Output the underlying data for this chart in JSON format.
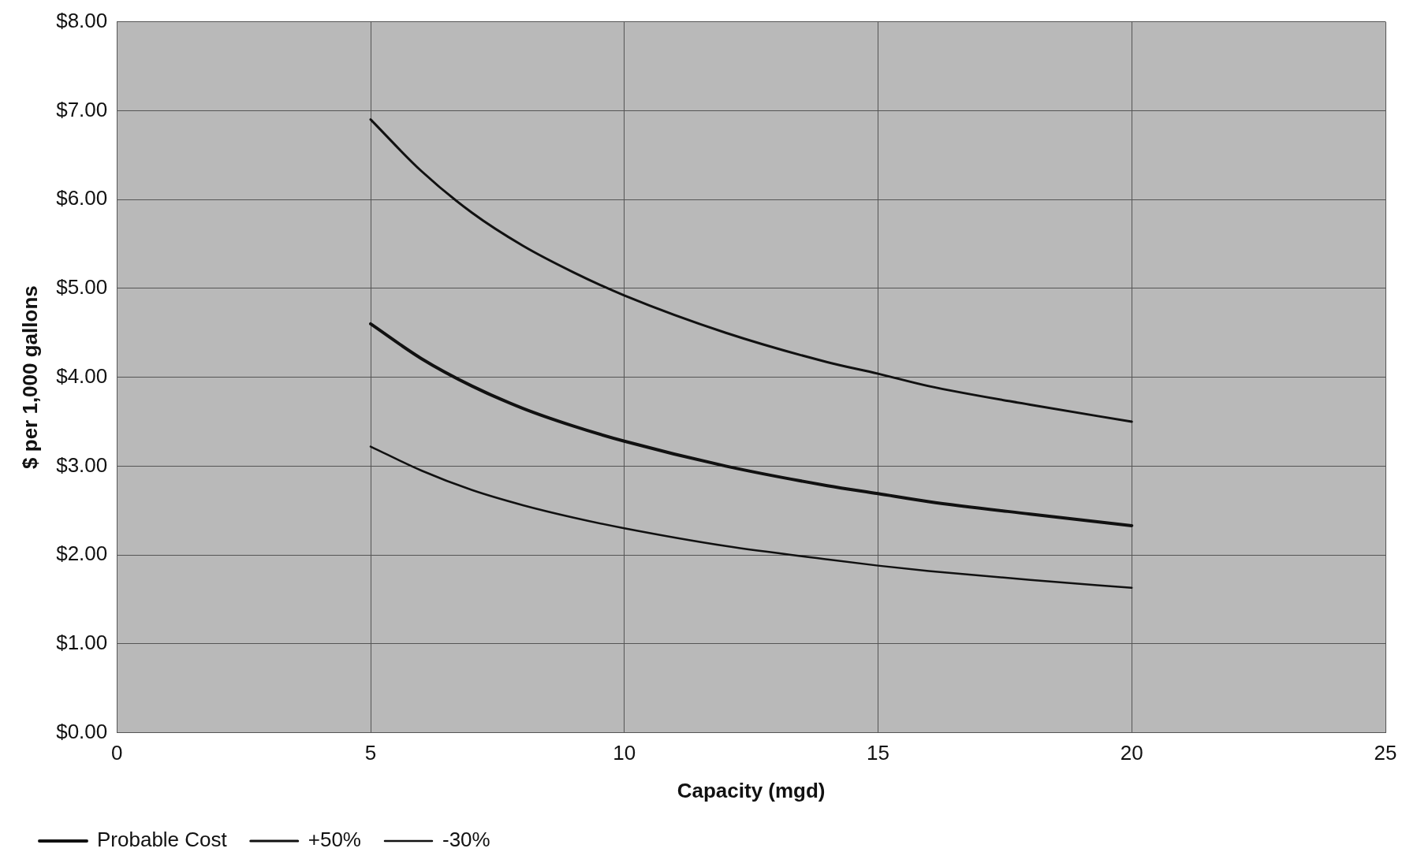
{
  "chart_data": {
    "type": "line",
    "xlabel": "Capacity (mgd)",
    "ylabel": "$ per 1,000 gallons",
    "x": [
      5,
      6,
      7,
      8,
      9,
      10,
      12,
      14,
      15,
      16,
      18,
      20
    ],
    "series": [
      {
        "name": "Probable Cost",
        "color": "#111111",
        "values": [
          4.6,
          4.21,
          3.9,
          3.65,
          3.45,
          3.28,
          3.0,
          2.78,
          2.69,
          2.6,
          2.46,
          2.33
        ]
      },
      {
        "name": "+50%",
        "color": "#111111",
        "values": [
          6.9,
          6.32,
          5.85,
          5.48,
          5.18,
          4.92,
          4.5,
          4.17,
          4.04,
          3.9,
          3.69,
          3.5
        ]
      },
      {
        "name": "-30%",
        "color": "#111111",
        "values": [
          3.22,
          2.95,
          2.73,
          2.56,
          2.42,
          2.3,
          2.1,
          1.95,
          1.88,
          1.82,
          1.72,
          1.63
        ]
      }
    ],
    "xlim": [
      0,
      25
    ],
    "xticks": [
      0,
      5,
      10,
      15,
      20,
      25
    ],
    "ylim": [
      0,
      8
    ],
    "yticks": [
      {
        "value": 0,
        "label": "$0.00"
      },
      {
        "value": 1,
        "label": "$1.00"
      },
      {
        "value": 2,
        "label": "$2.00"
      },
      {
        "value": 3,
        "label": "$3.00"
      },
      {
        "value": 4,
        "label": "$4.00"
      },
      {
        "value": 5,
        "label": "$5.00"
      },
      {
        "value": 6,
        "label": "$6.00"
      },
      {
        "value": 7,
        "label": "$7.00"
      },
      {
        "value": 8,
        "label": "$8.00"
      }
    ],
    "grid": true,
    "legend": "bottom left",
    "marker": "none",
    "line_style": "solid"
  }
}
